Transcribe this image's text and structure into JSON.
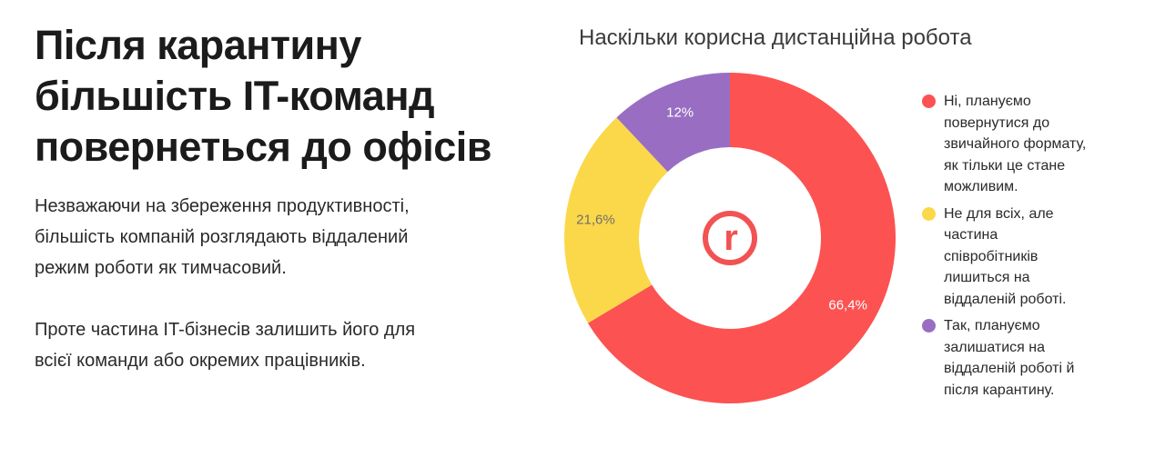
{
  "headline": "Після карантину\nбільшість IT-команд\nповернеться до офісів",
  "paragraph1": "Незважаючи на збереження продуктивності,\nбільшість компаній розглядають віддалений\nрежим роботи як тимчасовий.",
  "paragraph2": "Проте частина IT-бізнесів залишить його для\nвсієї команди або окремих працівників.",
  "logo_text": "r",
  "chart_data": {
    "type": "pie",
    "donut": true,
    "title": "Наскільки корисна дистанційна робота",
    "start": "top, clockwise",
    "legend_position": "right",
    "slices": [
      {
        "label": "Ні, плануємо\nповернутися до\nзвичайного формату,\nяк тільки це стане\nможливим.",
        "value": 66.4,
        "data_label": "66,4%",
        "color": "#fc5252",
        "label_color": "#ffffff"
      },
      {
        "label": "Не для всіх, але\nчастина\nспівробітників\nлишиться на\nвіддаленій роботі.",
        "value": 21.6,
        "data_label": "21,6%",
        "color": "#fbd849",
        "label_color": "#6e6e6e"
      },
      {
        "label": "Так, плануємо\nзалишатися на\nвіддаленій роботі й\nпісля карантину.",
        "value": 12,
        "data_label": "12%",
        "color": "#996ec2",
        "label_color": "#ffffff"
      }
    ]
  }
}
